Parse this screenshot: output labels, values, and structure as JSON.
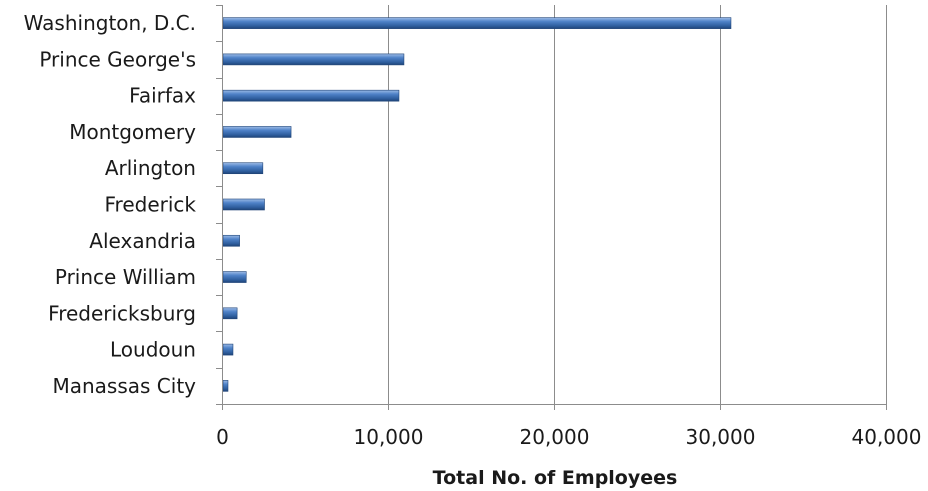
{
  "chart_data": {
    "type": "bar",
    "orientation": "horizontal",
    "title": "",
    "xlabel": "Total No. of Employees",
    "ylabel": "",
    "categories": [
      "Washington, D.C.",
      "Prince George's",
      "Fairfax",
      "Montgomery",
      "Arlington",
      "Frederick",
      "Alexandria",
      "Prince William",
      "Fredericksburg",
      "Loudoun",
      "Manassas City"
    ],
    "values": [
      30600,
      10900,
      10600,
      4100,
      2400,
      2500,
      1000,
      1400,
      850,
      600,
      300
    ],
    "xlim": [
      0,
      40000
    ],
    "xticks": [
      0,
      10000,
      20000,
      30000,
      40000
    ],
    "xtick_labels": [
      "0",
      "10,000",
      "20,000",
      "30,000",
      "40,000"
    ],
    "grid": "vertical",
    "legend": "none",
    "bar_color": "#3d6fb3"
  }
}
